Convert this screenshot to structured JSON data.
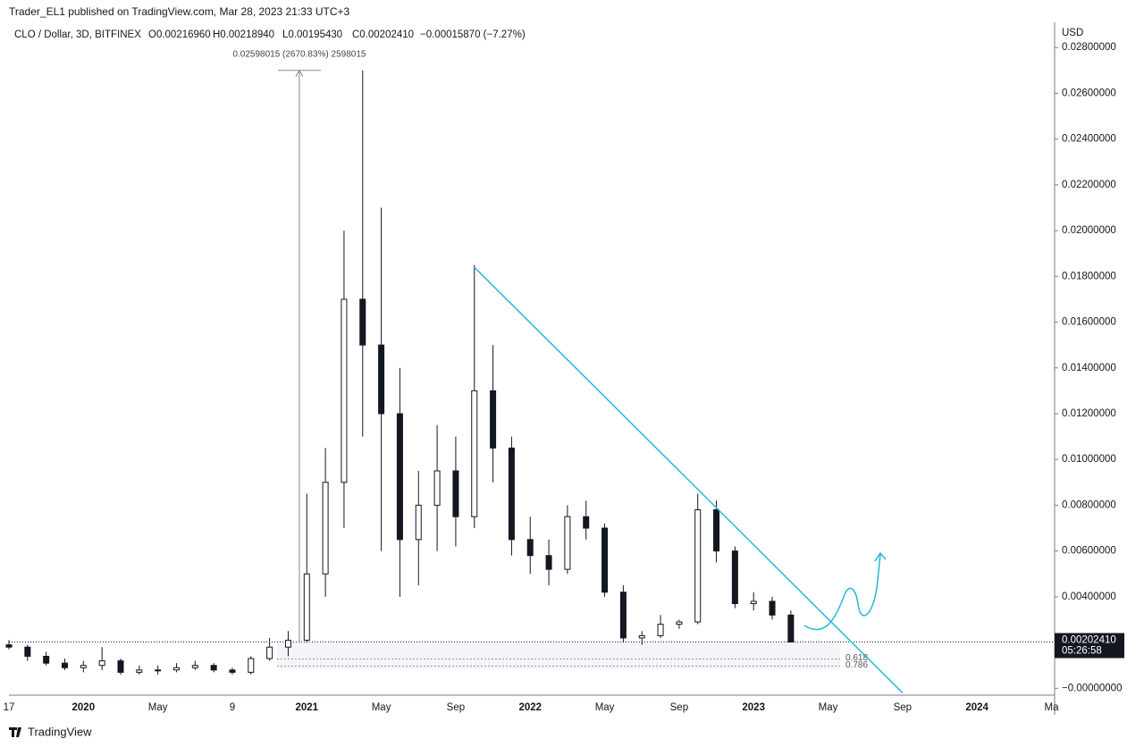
{
  "chart_data": {
    "type": "candlestick",
    "publisher": "Trader_EL1 published on TradingView.com, Mar 28, 2023 21:33 UTC+3",
    "symbol": "CLO / Dollar, 3D, BITFINEX",
    "legend_ohlc": [
      "O0.00216960",
      "H0.00218940",
      "L0.00195430",
      "C0.00202410",
      "−0.00015870 (−7.27%)"
    ],
    "currency": "USD",
    "measure_label": "0.02598015 (2670.83%) 2598015",
    "measure": {
      "x": [
        15.6,
        15.6
      ],
      "y": [
        0.002,
        0.027
      ]
    },
    "trendline": {
      "x": [
        25,
        48
      ],
      "y": [
        0.0184,
        -0.0002
      ]
    },
    "fib_levels": [
      0.618,
      0.786
    ],
    "last_price": {
      "value": 0.0020241,
      "label": "0.00202410"
    },
    "countdown": "05:26:58",
    "footer": "TradingView",
    "categories": [
      "17",
      null,
      null,
      null,
      "2020",
      null,
      null,
      null,
      "May",
      null,
      null,
      null,
      "9",
      null,
      null,
      null,
      "2021",
      null,
      null,
      null,
      "May",
      null,
      null,
      null,
      "Sep",
      null,
      null,
      null,
      "2022",
      null,
      null,
      null,
      "May",
      null,
      null,
      null,
      "Sep",
      null,
      null,
      null,
      "2023",
      null,
      null,
      null,
      "May",
      null,
      null,
      null,
      "Sep",
      null,
      null,
      null,
      "2024",
      null,
      null,
      null,
      "Ma"
    ],
    "open": [
      0.0019,
      0.0018,
      0.0014,
      0.0011,
      0.0009,
      0.001,
      0.0012,
      0.0007,
      0.0008,
      0.0008,
      0.0009,
      0.001,
      0.0008,
      0.0007,
      0.0013,
      0.0018,
      0.0021,
      0.005,
      0.009,
      0.017,
      0.015,
      0.012,
      0.0065,
      0.008,
      0.0095,
      0.0075,
      0.013,
      0.0105,
      0.0065,
      0.0058,
      0.0052,
      0.0075,
      0.007,
      0.0042,
      0.0022,
      0.0023,
      0.0028,
      0.0029,
      0.0078,
      0.006,
      0.0037,
      0.0038,
      0.0032,
      null,
      null,
      null,
      null,
      null,
      null,
      null,
      null,
      null,
      null,
      null,
      null,
      null,
      null
    ],
    "high": [
      0.0021,
      0.0019,
      0.0016,
      0.0013,
      0.0012,
      0.0018,
      0.0013,
      0.001,
      0.001,
      0.0011,
      0.0012,
      0.0011,
      0.0009,
      0.0014,
      0.0022,
      0.0025,
      0.0085,
      0.0105,
      0.02,
      0.027,
      0.021,
      0.014,
      0.0095,
      0.0115,
      0.011,
      0.0185,
      0.015,
      0.011,
      0.0075,
      0.0065,
      0.008,
      0.0082,
      0.0072,
      0.0045,
      0.0025,
      0.0032,
      0.003,
      0.0085,
      0.0082,
      0.0062,
      0.0042,
      0.004,
      0.0034,
      null,
      null,
      null,
      null,
      null,
      null,
      null,
      null,
      null,
      null,
      null,
      null,
      null,
      null
    ],
    "low": [
      0.0017,
      0.0012,
      0.001,
      0.0008,
      0.0007,
      0.0008,
      0.0006,
      0.0006,
      0.0006,
      0.0007,
      0.0008,
      0.0007,
      0.0006,
      0.0006,
      0.0012,
      0.0014,
      0.002,
      0.004,
      0.007,
      0.011,
      0.006,
      0.004,
      0.0045,
      0.006,
      0.0062,
      0.007,
      0.009,
      0.0058,
      0.005,
      0.0045,
      0.005,
      0.0065,
      0.004,
      0.002,
      0.0019,
      0.0022,
      0.0026,
      0.0028,
      0.0055,
      0.0035,
      0.0034,
      0.003,
      0.002,
      null,
      null,
      null,
      null,
      null,
      null,
      null,
      null,
      null,
      null,
      null,
      null,
      null,
      null
    ],
    "close": [
      0.0018,
      0.0014,
      0.0011,
      0.0009,
      0.001,
      0.0012,
      0.0007,
      0.0008,
      0.0008,
      0.0009,
      0.001,
      0.0008,
      0.0007,
      0.0013,
      0.0018,
      0.0021,
      0.005,
      0.009,
      0.017,
      0.015,
      0.012,
      0.0065,
      0.008,
      0.0095,
      0.0075,
      0.013,
      0.0105,
      0.0065,
      0.0058,
      0.0052,
      0.0075,
      0.007,
      0.0042,
      0.0022,
      0.0023,
      0.0028,
      0.0029,
      0.0078,
      0.006,
      0.0037,
      0.0038,
      0.0032,
      0.0020241,
      null,
      null,
      null,
      null,
      null,
      null,
      null,
      null,
      null,
      null,
      null,
      null,
      null,
      null
    ],
    "color": "#131722",
    "trend_color": "#26b8d6",
    "ylim": [
      -0.0003,
      0.0291
    ],
    "yticks": [
      {
        "value": 0,
        "label": "−0.00000000"
      },
      {
        "value": 0.004,
        "label": "0.00400000"
      },
      {
        "value": 0.006,
        "label": "0.00600000"
      },
      {
        "value": 0.008,
        "label": "0.00800000"
      },
      {
        "value": 0.01,
        "label": "0.01000000"
      },
      {
        "value": 0.012,
        "label": "0.01200000"
      },
      {
        "value": 0.014,
        "label": "0.01400000"
      },
      {
        "value": 0.016,
        "label": "0.01600000"
      },
      {
        "value": 0.018,
        "label": "0.01800000"
      },
      {
        "value": 0.02,
        "label": "0.02000000"
      },
      {
        "value": 0.022,
        "label": "0.02200000"
      },
      {
        "value": 0.024,
        "label": "0.02400000"
      },
      {
        "value": 0.026,
        "label": "0.02600000"
      },
      {
        "value": 0.028,
        "label": "0.02800000"
      }
    ],
    "grid": false
  }
}
